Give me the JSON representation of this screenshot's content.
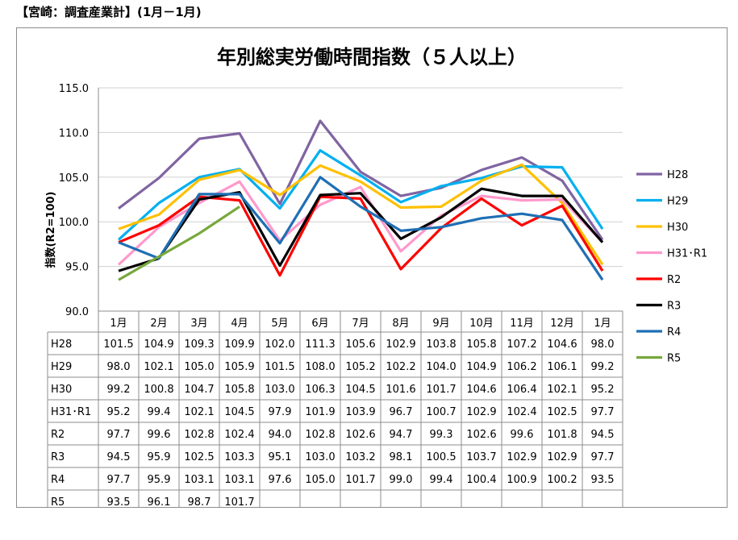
{
  "header": "【宮崎：調査産業計】(1月－1月)",
  "chart_data": {
    "type": "line",
    "title": "年別総実労働時間指数（５人以上）",
    "ylabel": "指数(R2=100)",
    "xlabel": "",
    "ylim": [
      90,
      115
    ],
    "yticks": [
      "90.0",
      "95.0",
      "100.0",
      "105.0",
      "110.0",
      "115.0"
    ],
    "categories": [
      "1月",
      "2月",
      "3月",
      "4月",
      "5月",
      "6月",
      "7月",
      "8月",
      "9月",
      "10月",
      "11月",
      "12月",
      "1月"
    ],
    "legend_position": "right",
    "series": [
      {
        "name": "H28",
        "color": "#8064a2",
        "values": [
          101.5,
          104.9,
          109.3,
          109.9,
          102.0,
          111.3,
          105.6,
          102.9,
          103.8,
          105.8,
          107.2,
          104.6,
          98.0
        ]
      },
      {
        "name": "H29",
        "color": "#00b0f0",
        "values": [
          98.0,
          102.1,
          105.0,
          105.9,
          101.5,
          108.0,
          105.2,
          102.2,
          104.0,
          104.9,
          106.2,
          106.1,
          99.2
        ]
      },
      {
        "name": "H30",
        "color": "#ffc000",
        "values": [
          99.2,
          100.8,
          104.7,
          105.8,
          103.0,
          106.3,
          104.5,
          101.6,
          101.7,
          104.6,
          106.4,
          102.1,
          95.2
        ]
      },
      {
        "name": "H31･R1",
        "color": "#ff99cc",
        "values": [
          95.2,
          99.4,
          102.1,
          104.5,
          97.9,
          101.9,
          103.9,
          96.7,
          100.7,
          102.9,
          102.4,
          102.5,
          97.7
        ]
      },
      {
        "name": "R2",
        "color": "#ff0000",
        "values": [
          97.7,
          99.6,
          102.8,
          102.4,
          94.0,
          102.8,
          102.6,
          94.7,
          99.3,
          102.6,
          99.6,
          101.8,
          94.5
        ]
      },
      {
        "name": "R3",
        "color": "#000000",
        "values": [
          94.5,
          95.9,
          102.5,
          103.3,
          95.1,
          103.0,
          103.2,
          98.1,
          100.5,
          103.7,
          102.9,
          102.9,
          97.7
        ]
      },
      {
        "name": "R4",
        "color": "#1f6fb4",
        "values": [
          97.7,
          95.9,
          103.1,
          103.1,
          97.6,
          105.0,
          101.7,
          99.0,
          99.4,
          100.4,
          100.9,
          100.2,
          93.5
        ]
      },
      {
        "name": "R5",
        "color": "#77a83c",
        "values": [
          93.5,
          96.1,
          98.7,
          101.7,
          null,
          null,
          null,
          null,
          null,
          null,
          null,
          null,
          null
        ]
      }
    ],
    "table": [
      {
        "label": "H28",
        "cells": [
          "101.5",
          "104.9",
          "109.3",
          "109.9",
          "102.0",
          "111.3",
          "105.6",
          "102.9",
          "103.8",
          "105.8",
          "107.2",
          "104.6",
          "98.0"
        ]
      },
      {
        "label": "H29",
        "cells": [
          "98.0",
          "102.1",
          "105.0",
          "105.9",
          "101.5",
          "108.0",
          "105.2",
          "102.2",
          "104.0",
          "104.9",
          "106.2",
          "106.1",
          "99.2"
        ]
      },
      {
        "label": "H30",
        "cells": [
          "99.2",
          "100.8",
          "104.7",
          "105.8",
          "103.0",
          "106.3",
          "104.5",
          "101.6",
          "101.7",
          "104.6",
          "106.4",
          "102.1",
          "95.2"
        ]
      },
      {
        "label": "H31･R1",
        "cells": [
          "95.2",
          "99.4",
          "102.1",
          "104.5",
          "97.9",
          "101.9",
          "103.9",
          "96.7",
          "100.7",
          "102.9",
          "102.4",
          "102.5",
          "97.7"
        ]
      },
      {
        "label": "R2",
        "cells": [
          "97.7",
          "99.6",
          "102.8",
          "102.4",
          "94.0",
          "102.8",
          "102.6",
          "94.7",
          "99.3",
          "102.6",
          "99.6",
          "101.8",
          "94.5"
        ]
      },
      {
        "label": "R3",
        "cells": [
          "94.5",
          "95.9",
          "102.5",
          "103.3",
          "95.1",
          "103.0",
          "103.2",
          "98.1",
          "100.5",
          "103.7",
          "102.9",
          "102.9",
          "97.7"
        ]
      },
      {
        "label": "R4",
        "cells": [
          "97.7",
          "95.9",
          "103.1",
          "103.1",
          "97.6",
          "105.0",
          "101.7",
          "99.0",
          "99.4",
          "100.4",
          "100.9",
          "100.2",
          "93.5"
        ]
      },
      {
        "label": "R5",
        "cells": [
          "93.5",
          "96.1",
          "98.7",
          "101.7",
          "",
          "",
          "",
          "",
          "",
          "",
          "",
          "",
          ""
        ]
      }
    ]
  }
}
